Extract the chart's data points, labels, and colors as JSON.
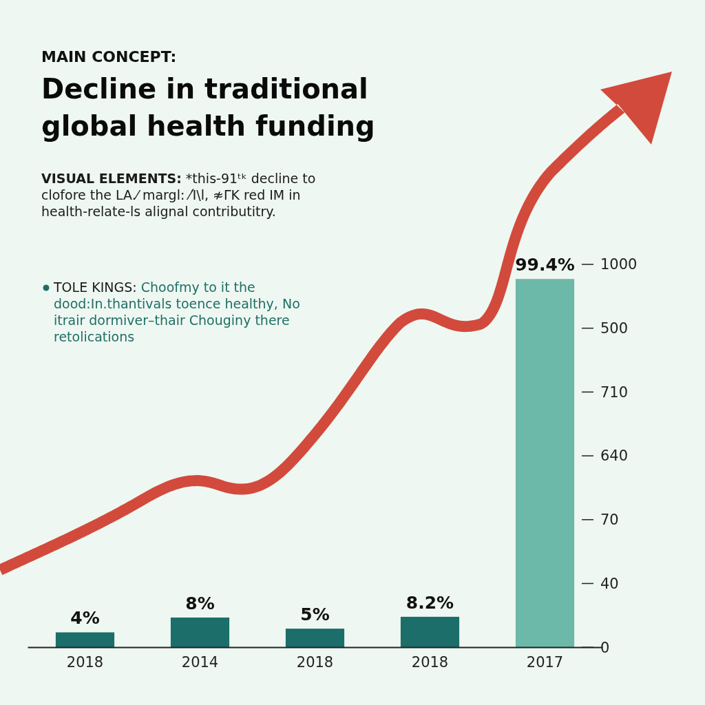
{
  "chart_data": {
    "type": "bar",
    "ylim": [
      0,
      100
    ],
    "subtitle": "MAIN CONCEPT:",
    "title": "Decline in traditional global health funding",
    "categories": [
      "2018",
      "2014",
      "2018",
      "2018",
      "2017"
    ],
    "values": [
      4,
      8,
      5,
      8.2,
      99.4
    ],
    "colors": [
      "#1b6e69",
      "#1b6e69",
      "#1b6e69",
      "#1b6e69",
      "#6cb8a9"
    ],
    "value_labels": [
      "4%",
      "8%",
      "5%",
      "8.2%",
      "99.4%"
    ],
    "annotations": [
      "VISUAL ELEMENTS: *this-91ᵗᵏ decline to clofore the LA.⁄ margl: ⁄Ί\\l, ≉ΓK red IM in health-relate-ls alignal contributitry.",
      "TOLE KINGS: Choofmy to it the dood:In.thantivals toence healthy, No itrair dormiver–thair Chouginy there retolications",
      "1000",
      "500",
      "710",
      "640",
      "70",
      "40",
      "0"
    ]
  }
}
